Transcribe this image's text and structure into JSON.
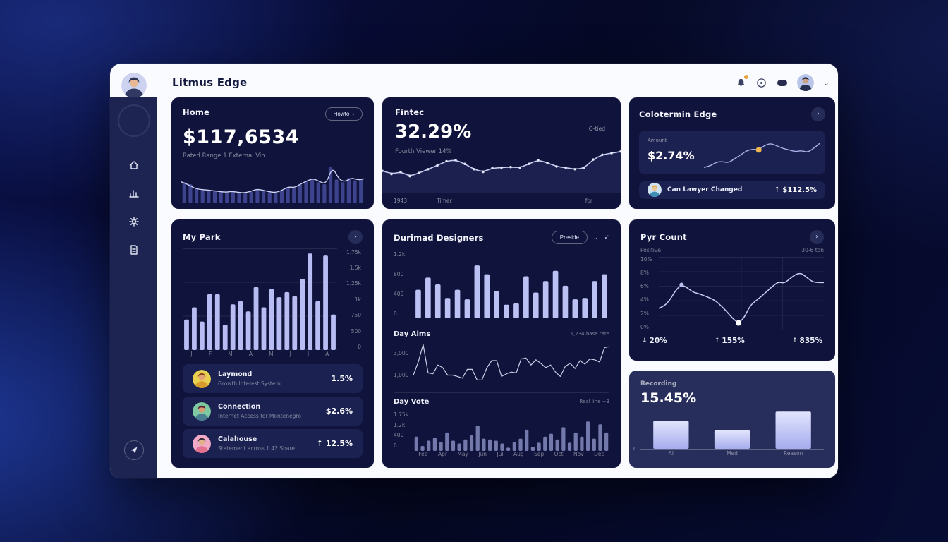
{
  "app": {
    "title": "Litmus Edge"
  },
  "icons": {
    "chevron_right": "›",
    "chevron_down": "⌄",
    "check": "✓"
  },
  "colors": {
    "accent_yellow": "#efb64d",
    "bar_light": "#b7bcf3",
    "card_bg": "#10143c",
    "sidebar_bg": "#1d2452",
    "notification_dot": "#e8a13c"
  },
  "cards": {
    "home": {
      "title": "Home",
      "button_label": "Howto",
      "value": "$117,6534",
      "subtitle": "Rated Range 1 External Vin"
    },
    "fintec": {
      "title": "Fintec",
      "value": "32.29%",
      "subtitle": "Fourth Viewer 14%",
      "corner_label": "O-tied",
      "axis_labels": {
        "left": "1943",
        "mid": "Timer",
        "right": "for"
      }
    },
    "edge": {
      "title": "Colotermin Edge",
      "panel_label": "Amount",
      "panel_value": "$2.74%",
      "row_name": "Can Lawyer Changed",
      "row_value": "↑ $112.5%"
    },
    "my_park": {
      "title": "My Park",
      "list": [
        {
          "name": "Laymond",
          "desc": "Growth Interest System",
          "value": "1.5%"
        },
        {
          "name": "Connection",
          "desc": "Internet Access for Montenegro",
          "value": "$2.6%"
        },
        {
          "name": "Calahouse",
          "desc": "Statement across 1.42 Share",
          "value": "↑ 12.5%"
        }
      ]
    },
    "designers": {
      "title": "Durimad Designers",
      "button_label": "Preside",
      "day_aims": {
        "label": "Day Aims",
        "note": "1,234 base rate"
      },
      "day_vote": {
        "label": "Day Vote",
        "note": "Real line +3"
      }
    },
    "pyr": {
      "title": "Pyr Count",
      "left_label": "Positive",
      "right_label": "30-6 ton",
      "stats": [
        {
          "arrow": "↓",
          "value": "20%"
        },
        {
          "arrow": "↑",
          "value": "155%"
        },
        {
          "arrow": "↑",
          "value": "835%"
        }
      ]
    },
    "recording": {
      "title": "Recording",
      "value": "15.45%",
      "zero_label": "0"
    }
  },
  "chart_data": {
    "home": {
      "type": "bar",
      "bars": [
        55,
        50,
        38,
        35,
        34,
        33,
        30,
        28,
        30,
        28,
        26,
        30,
        36,
        33,
        29,
        27,
        33,
        42,
        40,
        50,
        58,
        64,
        55,
        50,
        95,
        62,
        55,
        66,
        60,
        63
      ],
      "line": [
        56,
        50,
        40,
        36,
        35,
        33,
        31,
        29,
        31,
        29,
        27,
        31,
        37,
        34,
        30,
        28,
        34,
        43,
        41,
        51,
        59,
        65,
        56,
        51,
        96,
        63,
        56,
        67,
        61,
        64
      ],
      "bar_fill": "rgba(105,114,220,0.5)",
      "stroke": "#d3d8f8",
      "stroke_width": 1.3,
      "barw": 0.6
    },
    "fintec": {
      "type": "line",
      "line": [
        42,
        36,
        40,
        32,
        38,
        45,
        52,
        60,
        62,
        55,
        45,
        40,
        47,
        48,
        49,
        48,
        55,
        62,
        57,
        50,
        48,
        45,
        47,
        63,
        72,
        75,
        78
      ],
      "stroke": "#c6cbef",
      "stroke_width": 1.6,
      "dots": "#e6e9fb",
      "dot_r": 1.7,
      "area": "rgba(58,66,130,0.28)"
    },
    "edge": {
      "type": "line",
      "line": [
        4,
        8,
        20,
        22,
        18,
        30,
        42,
        55,
        60,
        58,
        72,
        78,
        70,
        62,
        58,
        52,
        56,
        50,
        62,
        78
      ],
      "stroke": "#a9b1e6",
      "stroke_width": 1.4,
      "highlights": [
        {
          "i": 9,
          "color": "#efb64d",
          "r": 4
        }
      ]
    },
    "my_park": {
      "type": "bar",
      "bars": [
        30,
        42,
        28,
        55,
        55,
        25,
        45,
        48,
        38,
        62,
        42,
        60,
        52,
        57,
        53,
        70,
        95,
        48,
        93,
        35
      ],
      "bar_fill": "#b7bcf3",
      "barw": 0.62,
      "hgrid": 4,
      "yticks": [
        "1.75k",
        "1.5k",
        "1.25k",
        "1k",
        "750",
        "500",
        "0"
      ],
      "xticks": [
        "J",
        "F",
        "M",
        "A",
        "M",
        "J",
        "J",
        "A"
      ]
    },
    "designers": {
      "type": "bar",
      "bars": [
        42,
        60,
        50,
        30,
        42,
        28,
        78,
        65,
        40,
        20,
        22,
        62,
        38,
        55,
        70,
        48,
        28,
        30,
        55,
        65
      ],
      "bar_fill": "#bcc1f4",
      "barw": 0.55,
      "yticks": [
        "1.2k",
        "800",
        "400",
        "0"
      ]
    },
    "day_aims": {
      "type": "line",
      "line": [
        25,
        55,
        95,
        30,
        28,
        48,
        42,
        25,
        25,
        22,
        18,
        38,
        38,
        14,
        14,
        42,
        58,
        58,
        22,
        28,
        32,
        30,
        62,
        64,
        48,
        60,
        52,
        42,
        48,
        32,
        22,
        45,
        52,
        40,
        58,
        50,
        62,
        60,
        55,
        88,
        90
      ],
      "stroke": "rgba(223,227,248,0.9)",
      "stroke_width": 1.2,
      "smooth": false,
      "yticks": [
        "3,000",
        "1,000"
      ]
    },
    "day_vote": {
      "type": "bar",
      "bars": [
        35,
        12,
        25,
        32,
        22,
        45,
        25,
        18,
        28,
        38,
        62,
        30,
        28,
        25,
        18,
        8,
        22,
        30,
        52,
        10,
        20,
        35,
        42,
        28,
        58,
        20,
        45,
        35,
        72,
        30,
        65,
        45
      ],
      "bar_fill": "rgba(148,156,208,0.75)",
      "barw": 0.6,
      "yticks": [
        "1.75k",
        "1.2k",
        "400",
        "0"
      ],
      "xticks": [
        "Feb",
        "Apr",
        "May",
        "Jun",
        "Jul",
        "Aug",
        "Sep",
        "Oct",
        "Nov",
        "Dec"
      ]
    },
    "pyr": {
      "type": "line",
      "line": [
        30,
        33,
        42,
        55,
        62,
        58,
        52,
        50,
        47,
        44,
        40,
        33,
        25,
        16,
        10,
        17,
        33,
        40,
        46,
        53,
        60,
        66,
        64,
        70,
        76,
        78,
        72,
        66,
        65,
        65
      ],
      "stroke": "#c9cff2",
      "stroke_width": 1.5,
      "hgrid": 6,
      "vgrid": 3,
      "highlights": [
        {
          "i": 4,
          "color": "#b7bdec",
          "r": 3
        },
        {
          "i": 14,
          "color": "#ffffff",
          "r": 4
        }
      ],
      "yticks": [
        "10%",
        "8%",
        "6%",
        "4%",
        "2%",
        "0%"
      ]
    },
    "recording": {
      "type": "bar",
      "bars": [
        72,
        48,
        96
      ],
      "bar_gradient": [
        "#e2e5fd",
        "#a6acee"
      ],
      "barw": 0.58,
      "categories": [
        "AI",
        "Med",
        "Reason"
      ]
    }
  }
}
